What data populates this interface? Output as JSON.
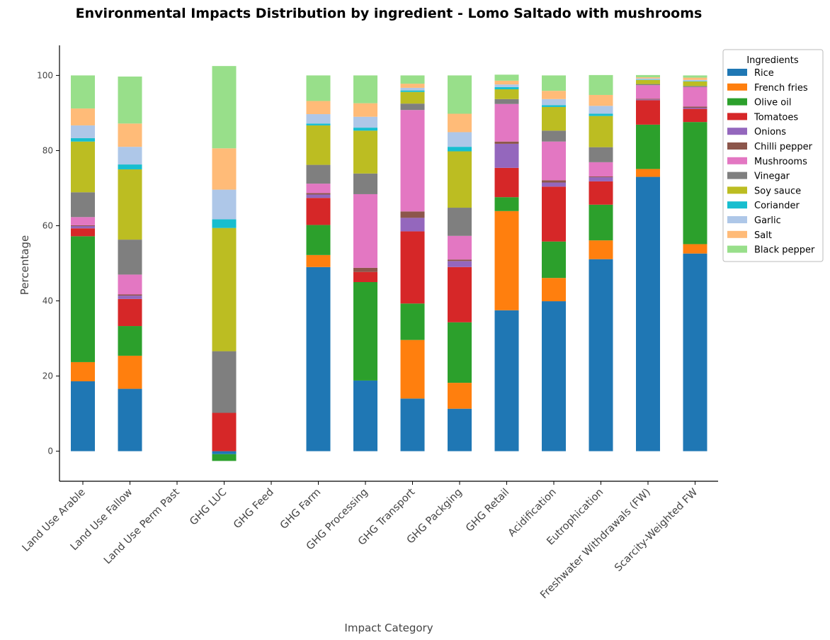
{
  "chart_data": {
    "type": "bar",
    "stacked": true,
    "title": "Environmental Impacts Distribution by ingredient - Lomo Saltado with mushrooms",
    "xlabel": "Impact Category",
    "ylabel": "Percentage",
    "ylim": [
      -8,
      108
    ],
    "yticks": [
      0,
      20,
      40,
      60,
      80,
      100
    ],
    "grid": false,
    "legend": {
      "title": "Ingredients",
      "placement": "upper right outside"
    },
    "categories": [
      "Land Use Arable",
      "Land Use Fallow",
      "Land Use Perm Past",
      "GHG LUC",
      "GHG Feed",
      "GHG Farm",
      "GHG Processing",
      "GHG Transport",
      "GHG Packging",
      "GHG Retail",
      "Acidification",
      "Eutrophication",
      "Freshwater Withdrawals (FW)",
      "Scarcity-Weighted FW"
    ],
    "series": [
      {
        "name": "Rice",
        "color": "#1f77b4",
        "values": [
          18.6,
          16.6,
          0,
          -0.8,
          0,
          49.0,
          18.8,
          14.0,
          11.3,
          37.5,
          39.9,
          51.1,
          73.0,
          52.6
        ]
      },
      {
        "name": "French fries",
        "color": "#ff7f0e",
        "values": [
          5.1,
          8.8,
          0,
          0,
          0,
          3.2,
          0,
          15.6,
          6.9,
          26.4,
          6.2,
          5.0,
          2.1,
          2.5
        ]
      },
      {
        "name": "Olive oil",
        "color": "#2ca02c",
        "values": [
          33.5,
          7.9,
          0,
          -1.8,
          0,
          8.0,
          26.2,
          9.7,
          16.1,
          3.7,
          9.7,
          9.5,
          11.8,
          32.5
        ]
      },
      {
        "name": "Tomatoes",
        "color": "#d62728",
        "values": [
          2.1,
          7.2,
          0,
          10.2,
          0,
          7.2,
          2.7,
          19.2,
          14.7,
          7.8,
          14.6,
          6.2,
          6.5,
          3.5
        ]
      },
      {
        "name": "Onions",
        "color": "#9467bd",
        "values": [
          0.6,
          0.9,
          0,
          0,
          0,
          0.9,
          0,
          3.6,
          1.6,
          6.4,
          1.1,
          1.1,
          0.2,
          0.3
        ]
      },
      {
        "name": "Chilli pepper",
        "color": "#8c564b",
        "values": [
          0.2,
          0.3,
          0,
          0,
          0,
          0.4,
          1.1,
          1.7,
          0.4,
          0.6,
          0.6,
          0.2,
          0.2,
          0.3
        ]
      },
      {
        "name": "Mushrooms",
        "color": "#e377c2",
        "values": [
          2.2,
          5.3,
          0,
          0,
          0,
          2.5,
          19.6,
          27.0,
          6.3,
          10.0,
          10.3,
          3.8,
          3.6,
          5.2
        ]
      },
      {
        "name": "Vinegar",
        "color": "#7f7f7f",
        "values": [
          6.6,
          9.3,
          0,
          16.4,
          0,
          5.0,
          5.5,
          1.7,
          7.5,
          1.3,
          2.9,
          4.0,
          0.3,
          0.3
        ]
      },
      {
        "name": "Soy sauce",
        "color": "#bcbd22",
        "values": [
          13.5,
          18.7,
          0,
          32.8,
          0,
          10.5,
          11.4,
          3.1,
          15.0,
          2.6,
          6.3,
          8.3,
          1.1,
          1.2
        ]
      },
      {
        "name": "Coriander",
        "color": "#17becf",
        "values": [
          0.9,
          1.3,
          0,
          2.3,
          0,
          0.5,
          0.8,
          0.4,
          1.2,
          0.6,
          0.5,
          0.6,
          0.1,
          0.1
        ]
      },
      {
        "name": "Garlic",
        "color": "#aec7e8",
        "values": [
          3.4,
          4.7,
          0,
          7.9,
          0,
          2.5,
          2.9,
          0.7,
          3.9,
          0.7,
          1.6,
          2.1,
          0.3,
          0.3
        ]
      },
      {
        "name": "Salt",
        "color": "#ffbb78",
        "values": [
          4.5,
          6.2,
          0,
          11.0,
          0,
          3.5,
          3.6,
          1.1,
          4.9,
          1.0,
          2.2,
          2.9,
          0.3,
          0.6
        ]
      },
      {
        "name": "Black pepper",
        "color": "#98df8a",
        "values": [
          8.8,
          12.5,
          0,
          21.9,
          0,
          6.8,
          7.4,
          2.2,
          10.2,
          1.6,
          4.1,
          5.3,
          0.6,
          0.6
        ]
      }
    ]
  }
}
